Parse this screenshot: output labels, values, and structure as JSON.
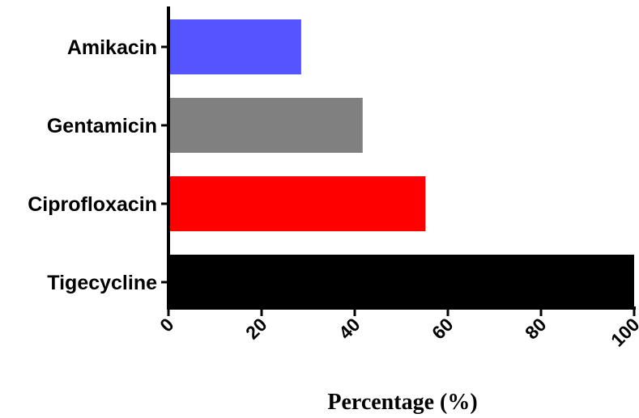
{
  "chart_data": {
    "type": "bar",
    "orientation": "horizontal",
    "categories": [
      "Amikacin",
      "Gentamicin",
      "Ciprofloxacin",
      "Tigecycline"
    ],
    "values": [
      28.5,
      41.7,
      55.2,
      100
    ],
    "colors": [
      "#5555ff",
      "#808080",
      "#ff0000",
      "#000000"
    ],
    "xlabel": "Percentage (%)",
    "ylabel": "",
    "xlim": [
      0,
      100
    ],
    "xticks": [
      "0",
      "20",
      "40",
      "60",
      "80",
      "100"
    ],
    "grid": false,
    "legend": "none"
  }
}
